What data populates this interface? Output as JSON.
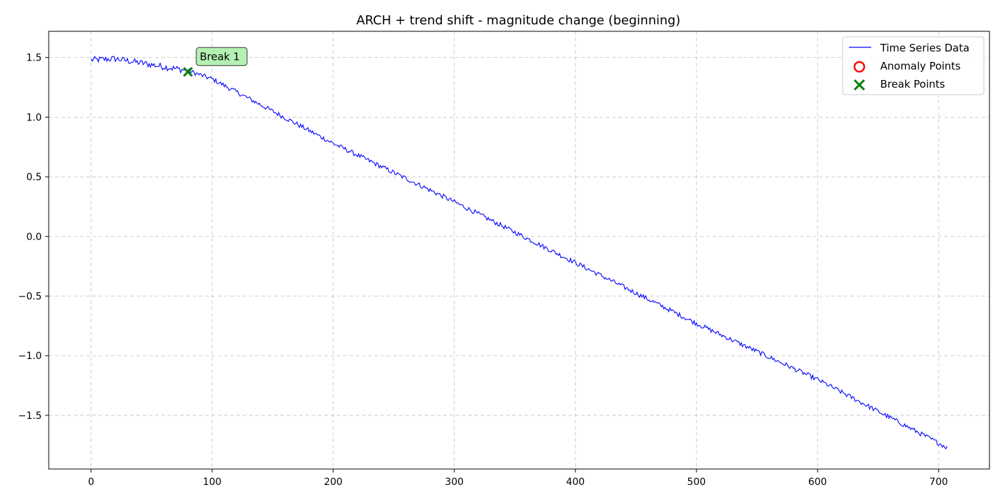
{
  "chart_data": {
    "type": "line",
    "title": "ARCH + trend shift - magnitude change (beginning)",
    "xlabel": "",
    "ylabel": "",
    "xlim": [
      -35,
      742
    ],
    "ylim": [
      -1.95,
      1.72
    ],
    "xticks": [
      0,
      100,
      200,
      300,
      400,
      500,
      600,
      700
    ],
    "yticks": [
      -1.5,
      -1.0,
      -0.5,
      0.0,
      0.5,
      1.0,
      1.5
    ],
    "ytick_labels": [
      "−1.5",
      "−1.0",
      "−0.5",
      "0.0",
      "0.5",
      "1.0",
      "1.5"
    ],
    "grid": true,
    "legend_position": "top-right",
    "series": [
      {
        "name": "Time Series Data",
        "color": "#0000ff",
        "n_points": 708,
        "x_range": [
          0,
          707
        ],
        "knots": [
          [
            0,
            1.48
          ],
          [
            20,
            1.49
          ],
          [
            80,
            1.39
          ],
          [
            100,
            1.32
          ],
          [
            200,
            0.78
          ],
          [
            300,
            0.29
          ],
          [
            400,
            -0.22
          ],
          [
            500,
            -0.73
          ],
          [
            600,
            -1.2
          ],
          [
            707,
            -1.77
          ]
        ],
        "noise_amplitude": 0.02
      }
    ],
    "anomaly_points": {
      "name": "Anomaly Points",
      "color": "#ff0000",
      "points": []
    },
    "break_points": {
      "name": "Break Points",
      "color": "#008000",
      "points": [
        [
          80,
          1.38
        ]
      ]
    },
    "annotations": [
      {
        "text": "Break 1",
        "x": 80,
        "y": 1.38,
        "bg": "#b4f0b4"
      }
    ],
    "legend": [
      "Time Series Data",
      "Anomaly Points",
      "Break Points"
    ]
  }
}
